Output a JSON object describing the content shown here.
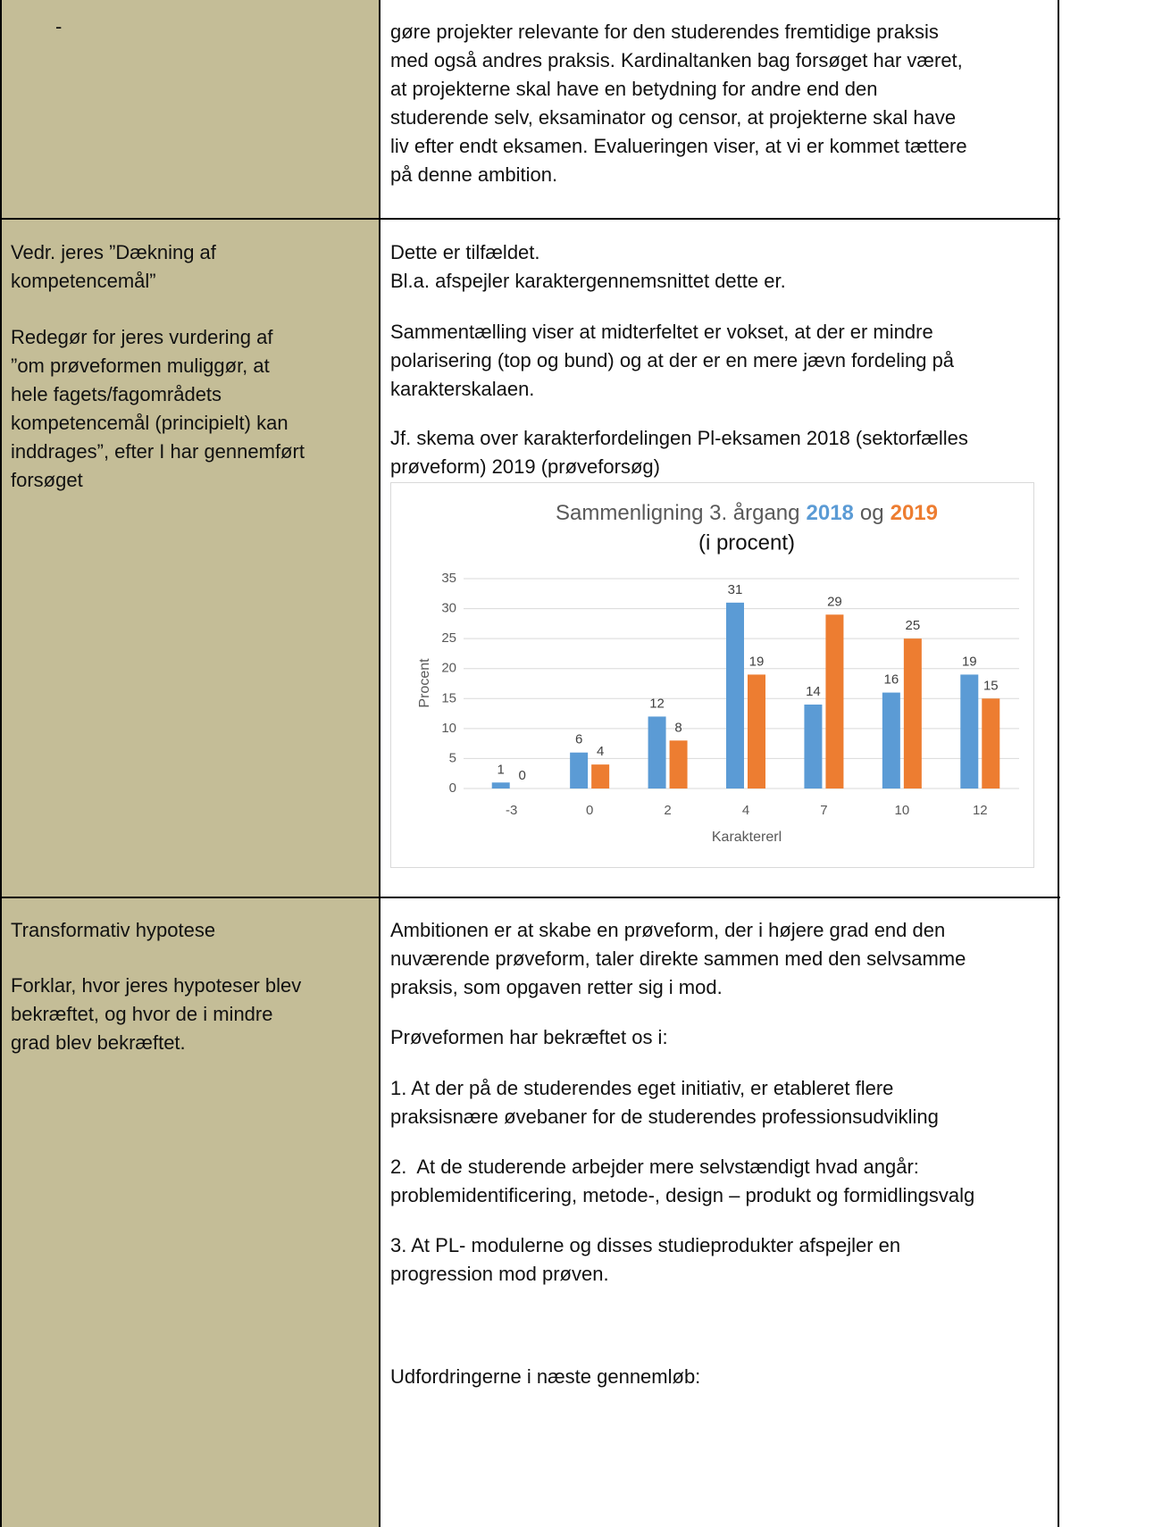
{
  "rows": [
    {
      "left": [
        [
          "-"
        ]
      ],
      "right": [
        [
          "gøre projekter relevante for den studerendes fremtidige praksis",
          "med også andres praksis. Kardinaltanken bag forsøget har været,",
          "at projekterne skal have en betydning for andre end den",
          "studerende selv, eksaminator og censor, at projekterne skal have",
          "liv efter endt eksamen. Evalueringen viser, at vi er kommet tættere",
          "på denne ambition."
        ]
      ]
    },
    {
      "left": [
        [
          "Vedr. jeres ”Dækning af",
          "kompetencemål”"
        ],
        [
          "Redegør for jeres vurdering af",
          "”om prøveformen muliggør, at",
          "hele fagets/fagområdets",
          "kompetencemål (principielt) kan",
          "inddrages”, efter I har gennemført",
          "forsøget"
        ]
      ],
      "right": [
        [
          "Dette er tilfældet.",
          "Bl.a. afspejler karaktergennemsnittet dette er."
        ],
        [
          "Sammentælling viser at midterfeltet er vokset, at der er mindre",
          "polarisering (top og bund) og at der er en mere jævn fordeling på",
          "karakterskalaen."
        ],
        [
          "Jf. skema over karakterfordelingen Pl-eksamen 2018 (sektorfælles",
          "prøveform) 2019 (prøveforsøg)"
        ]
      ],
      "chart": {
        "type": "bar",
        "title": [
          "Sammenligning 3. årgang",
          "og"
        ],
        "subtitle": "(i procent)",
        "categories": [
          "-3",
          "0",
          "2",
          "4",
          "7",
          "10",
          "12"
        ],
        "series": [
          {
            "name": "2018",
            "color": "#5b9bd5",
            "values": [
              1,
              6,
              12,
              31,
              14,
              16,
              19
            ]
          },
          {
            "name": "2019",
            "color": "#ed7d31",
            "values": [
              0,
              4,
              8,
              19,
              29,
              25,
              15
            ]
          }
        ],
        "ylim": [
          0,
          35
        ],
        "yticks": [
          0,
          5,
          10,
          15,
          20,
          25,
          30,
          35
        ],
        "grid": true,
        "ylabel": "Procent",
        "xlabel": "Karaktererl"
      }
    },
    {
      "left": [
        [
          "Transformativ hypotese"
        ],
        [
          "Forklar, hvor jeres hypoteser blev",
          "bekræftet, og hvor de i mindre",
          "grad blev bekræftet."
        ]
      ],
      "right": [
        [
          "Ambitionen er at skabe en prøveform, der i højere grad end den",
          "nuværende prøveform, taler direkte sammen med den selvsamme",
          "praksis, som opgaven retter sig i mod."
        ],
        [
          "Prøveformen har bekræftet os i:"
        ],
        [
          "1. At der på de studerendes eget initiativ, er etableret flere",
          "praksisnære øvebaner for de studerendes professionsudvikling"
        ],
        [
          "2.  At de studerende arbejder mere selvstændigt hvad angår:",
          "problemidentificering, metode-, design – produkt og formidlingsvalg"
        ],
        [
          "3. At PL- modulerne og disses studieprodukter afspejler en",
          "progression mod prøven."
        ],
        [
          "Udfordringerne i næste gennemløb:"
        ]
      ]
    }
  ]
}
